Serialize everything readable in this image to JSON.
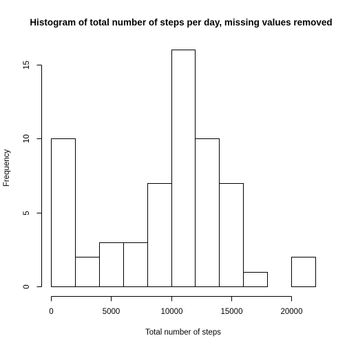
{
  "chart_data": {
    "type": "bar",
    "title": "Histogram of total number of steps per day, missing values removed",
    "xlabel": "Total number of steps",
    "ylabel": "Frequency",
    "bins": [
      {
        "start": 0,
        "end": 2000,
        "count": 10
      },
      {
        "start": 2000,
        "end": 4000,
        "count": 2
      },
      {
        "start": 4000,
        "end": 6000,
        "count": 3
      },
      {
        "start": 6000,
        "end": 8000,
        "count": 3
      },
      {
        "start": 8000,
        "end": 10000,
        "count": 7
      },
      {
        "start": 10000,
        "end": 12000,
        "count": 16
      },
      {
        "start": 12000,
        "end": 14000,
        "count": 10
      },
      {
        "start": 14000,
        "end": 16000,
        "count": 7
      },
      {
        "start": 16000,
        "end": 18000,
        "count": 1
      },
      {
        "start": 18000,
        "end": 20000,
        "count": 0
      },
      {
        "start": 20000,
        "end": 22000,
        "count": 2
      }
    ],
    "xlim": [
      0,
      22000
    ],
    "ylim": [
      0,
      16
    ],
    "x_ticks": [
      0,
      5000,
      10000,
      15000,
      20000
    ],
    "x_tick_labels": [
      "0",
      "5000",
      "10000",
      "15000",
      "20000"
    ],
    "y_ticks": [
      0,
      5,
      10,
      15
    ],
    "y_tick_labels": [
      "0",
      "5",
      "10",
      "15"
    ],
    "grid": false,
    "legend": "none",
    "bar_fill": "#ffffff",
    "bar_stroke": "#000000"
  }
}
